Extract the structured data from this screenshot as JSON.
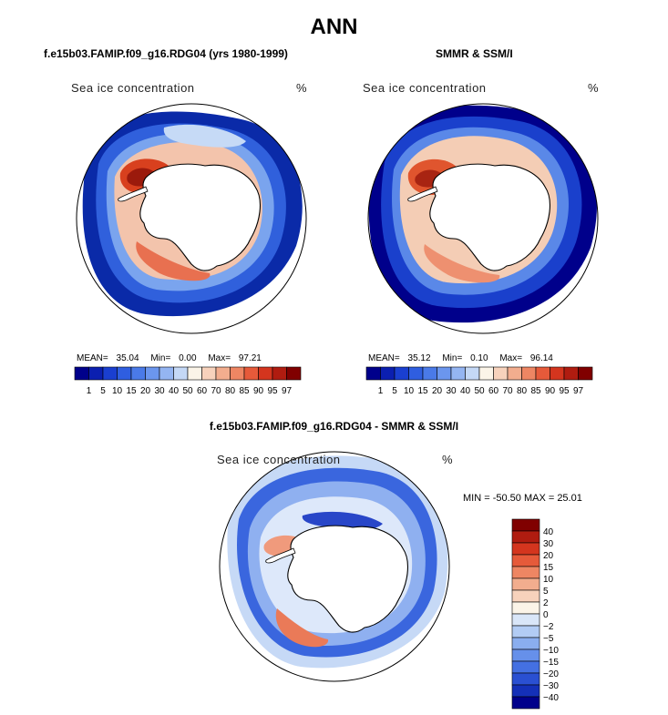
{
  "title": "ANN",
  "panels": [
    {
      "id": "model",
      "header": "f.e15b03.FAMIP.f09_g16.RDG04 (yrs 1980-1999)",
      "label": "Sea ice concentration",
      "units": "%",
      "stats": {
        "mean_label": "MEAN=",
        "mean": "35.04",
        "min_label": "Min=",
        "min": "0.00",
        "max_label": "Max=",
        "max": "97.21"
      }
    },
    {
      "id": "obs",
      "header": "SMMR & SSM/I",
      "label": "Sea ice concentration",
      "units": "%",
      "stats": {
        "mean_label": "MEAN=",
        "mean": "35.12",
        "min_label": "Min=",
        "min": "0.10",
        "max_label": "Max=",
        "max": "96.14"
      }
    },
    {
      "id": "diff",
      "header": "f.e15b03.FAMIP.f09_g16.RDG04 - SMMR & SSM/I",
      "label": "Sea ice concentration",
      "units": "%",
      "minmax": "MIN = -50.50 MAX =  25.01"
    }
  ],
  "colorbar_abs": {
    "labels": [
      "1",
      "5",
      "10",
      "15",
      "20",
      "30",
      "40",
      "50",
      "60",
      "70",
      "80",
      "85",
      "90",
      "95",
      "97"
    ],
    "colors": [
      "#00008b",
      "#0b1fb0",
      "#1a3fd0",
      "#2f5ee0",
      "#4a7ae8",
      "#6b96ee",
      "#94b5f2",
      "#c4d8f6",
      "#fbf4e8",
      "#f7d2bc",
      "#f2ad8e",
      "#ee8663",
      "#e65a3a",
      "#d4351e",
      "#b01c10",
      "#800000"
    ]
  },
  "colorbar_diff": {
    "labels": [
      "40",
      "30",
      "20",
      "15",
      "10",
      "5",
      "2",
      "0",
      "−2",
      "−5",
      "−10",
      "−15",
      "−20",
      "−30",
      "−40"
    ],
    "colors": [
      "#800000",
      "#b01c10",
      "#d4351e",
      "#e65a3a",
      "#ee8663",
      "#f2ad8e",
      "#f7d2bc",
      "#fbf4e8",
      "#d9e6f8",
      "#b2ccf4",
      "#8aaeef",
      "#6690ea",
      "#4470e2",
      "#2a50d2",
      "#1430b8",
      "#00008b"
    ]
  }
}
